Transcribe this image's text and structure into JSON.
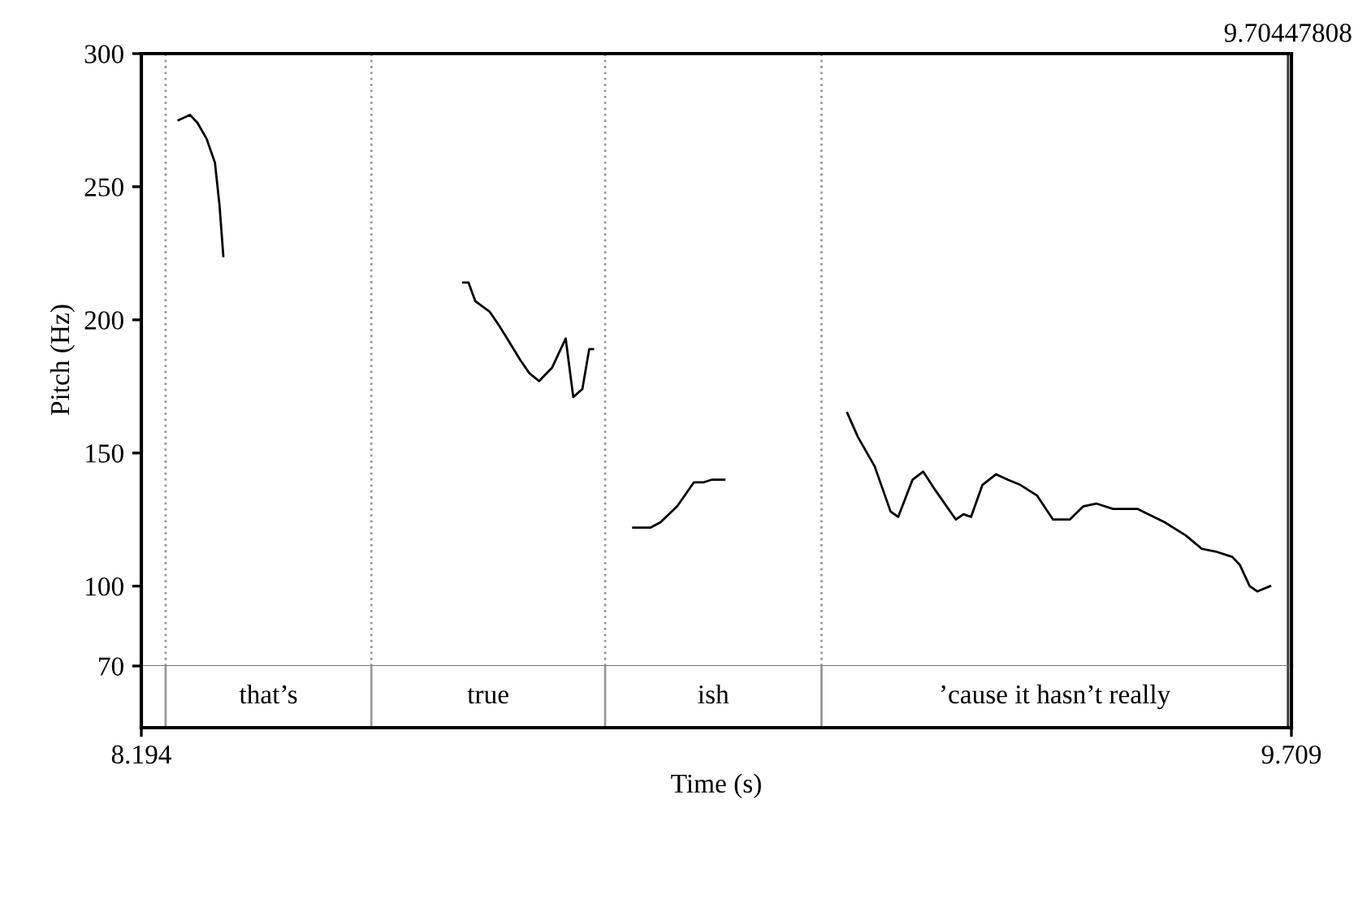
{
  "chart_data": {
    "type": "line",
    "ylabel": "Pitch (Hz)",
    "xlabel": "Time (s)",
    "xlim": [
      8.194,
      9.709
    ],
    "xticks": [
      8.194,
      9.709
    ],
    "ylim": [
      70,
      300
    ],
    "yticks": [
      70,
      100,
      150,
      200,
      250,
      300
    ],
    "line_style": "solid",
    "x": [
      8.243,
      8.258,
      8.268,
      8.28,
      8.291,
      8.297,
      8.302,
      8.46,
      8.618,
      8.625,
      8.634,
      8.653,
      8.665,
      8.678,
      8.693,
      8.705,
      8.718,
      8.735,
      8.753,
      8.763,
      8.775,
      8.784,
      8.789,
      8.81,
      8.842,
      8.865,
      8.878,
      8.9,
      8.922,
      8.935,
      8.946,
      8.962,
      9.04,
      9.124,
      9.138,
      9.16,
      9.181,
      9.191,
      9.21,
      9.224,
      9.24,
      9.267,
      9.277,
      9.287,
      9.302,
      9.32,
      9.335,
      9.352,
      9.374,
      9.395,
      9.417,
      9.435,
      9.452,
      9.474,
      9.506,
      9.542,
      9.57,
      9.591,
      9.609,
      9.631,
      9.641,
      9.654,
      9.664,
      9.681
    ],
    "series": [
      {
        "color": "#000000",
        "values": [
          275,
          277,
          274,
          268,
          259,
          243,
          224,
          null,
          214,
          214,
          207,
          203,
          198,
          192,
          185,
          180,
          177,
          182,
          193,
          171,
          174,
          189,
          189,
          null,
          122,
          122,
          124,
          130,
          139,
          139,
          140,
          140,
          null,
          165,
          156,
          145,
          128,
          126,
          140,
          143,
          136,
          125,
          127,
          126,
          138,
          142,
          140,
          138,
          134,
          125,
          125,
          130,
          131,
          129,
          129,
          124,
          119,
          114,
          113,
          111,
          108,
          100,
          98,
          100
        ]
      }
    ],
    "annotations": [
      "that’s",
      "true",
      "ish",
      "’cause it hasn’t really"
    ],
    "ref_lines": [
      {
        "axis": "x",
        "value": 8.226,
        "color": "#999999",
        "line_style": "dotted"
      },
      {
        "axis": "x",
        "value": 8.497,
        "color": "#999999",
        "line_style": "dotted"
      },
      {
        "axis": "x",
        "value": 8.805,
        "color": "#999999",
        "line_style": "dotted"
      },
      {
        "axis": "x",
        "value": 9.09,
        "color": "#999999",
        "line_style": "dotted"
      },
      {
        "axis": "x",
        "value": 9.70447808,
        "label": "9.70447808",
        "color": "#333333",
        "line_style": "solid"
      }
    ]
  }
}
